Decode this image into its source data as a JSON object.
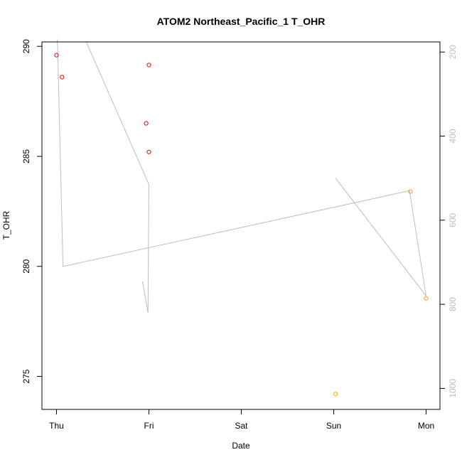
{
  "chart_data": {
    "type": "scatter",
    "title": "ATOM2 Northeast_Pacific_1 T_OHR",
    "xlabel": "Date",
    "ylabel": "T_OHR",
    "x_ticks": [
      "Thu",
      "Fri",
      "Sat",
      "Sun",
      "Mon"
    ],
    "xlim": [
      "Thu",
      "Mon"
    ],
    "ylim": [
      273.5,
      290.2
    ],
    "y_ticks": [
      275,
      280,
      285,
      290
    ],
    "y2_ticks": [
      200,
      400,
      600,
      800,
      1000
    ],
    "y2lim": [
      1050,
      176
    ],
    "y2_reversed": true,
    "grid": false,
    "points": [
      {
        "day": 0.0,
        "value": 289.6,
        "color": "#ff0000"
      },
      {
        "day": 0.06,
        "value": 288.6,
        "color": "#ff0000"
      },
      {
        "day": 0.97,
        "value": 286.5,
        "color": "#ff0000"
      },
      {
        "day": 1.0,
        "value": 289.15,
        "color": "#ff0000"
      },
      {
        "day": 1.0,
        "value": 285.2,
        "color": "#ff0000"
      },
      {
        "day": 3.02,
        "value": 274.2,
        "color": "#ffa500"
      },
      {
        "day": 3.83,
        "value": 283.4,
        "color": "#ffa500"
      },
      {
        "day": 4.0,
        "value": 278.55,
        "color": "#ffa500"
      }
    ],
    "pressure_lines": [
      [
        {
          "day": 0.01,
          "pressure": 170
        },
        {
          "day": 0.07,
          "pressure": 710
        },
        {
          "day": 3.82,
          "pressure": 530
        },
        {
          "day": 4.0,
          "pressure": 780
        },
        {
          "day": 3.02,
          "pressure": 500
        }
      ],
      [
        {
          "day": 0.32,
          "pressure": 175
        },
        {
          "day": 1.0,
          "pressure": 515
        },
        {
          "day": 0.99,
          "pressure": 820
        },
        {
          "day": 0.93,
          "pressure": 745
        }
      ]
    ],
    "line_color": "#bdbdbd"
  }
}
